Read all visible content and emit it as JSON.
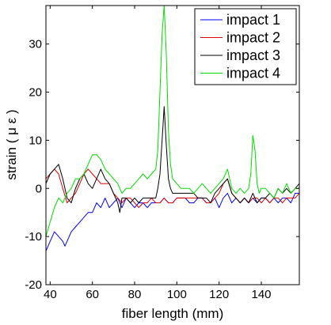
{
  "chart_data": {
    "type": "line",
    "xlabel": "fiber length (mm)",
    "ylabel": "strain ( μ ε )",
    "xlim": [
      38,
      158
    ],
    "ylim": [
      -20,
      38
    ],
    "xticks": [
      40,
      60,
      80,
      100,
      120,
      140
    ],
    "yticks": [
      -20,
      -10,
      0,
      10,
      20,
      30
    ],
    "grid": false,
    "legend_position": "top-right",
    "series": [
      {
        "name": "impact 1",
        "color": "#0000ff",
        "x": [
          38,
          40,
          42,
          44,
          46,
          47,
          48,
          50,
          52,
          54,
          56,
          58,
          60,
          62,
          64,
          66,
          68,
          70,
          72,
          74,
          76,
          78,
          80,
          82,
          84,
          86,
          88,
          90,
          92,
          94,
          96,
          98,
          100,
          102,
          104,
          106,
          108,
          110,
          112,
          114,
          116,
          118,
          120,
          122,
          124,
          126,
          128,
          130,
          132,
          134,
          136,
          138,
          140,
          142,
          144,
          146,
          148,
          150,
          152,
          154,
          156,
          158
        ],
        "y": [
          -13,
          -11,
          -9,
          -10,
          -11,
          -12,
          -11,
          -9,
          -8,
          -7,
          -6,
          -5,
          -5,
          -3,
          -4,
          -2,
          -4,
          -3,
          -2,
          -4,
          -2,
          -3,
          -4,
          -3,
          -3,
          -4,
          -3,
          -3,
          -3,
          -2,
          -3,
          -3,
          -2,
          -2,
          -2,
          -3,
          -3,
          -2,
          -2,
          -3,
          -3,
          -2,
          -4,
          -2,
          -1,
          -3,
          -2,
          -3,
          -2,
          -3,
          -2,
          -3,
          -2,
          -2,
          -3,
          -2,
          -3,
          -2,
          -2,
          -3,
          -1,
          -1
        ]
      },
      {
        "name": "impact 2",
        "color": "#e00000",
        "x": [
          38,
          40,
          42,
          44,
          46,
          48,
          50,
          52,
          54,
          56,
          58,
          60,
          62,
          64,
          66,
          68,
          70,
          72,
          74,
          76,
          78,
          80,
          82,
          84,
          86,
          88,
          90,
          92,
          94,
          96,
          98,
          100,
          102,
          104,
          106,
          108,
          110,
          112,
          114,
          116,
          118,
          120,
          122,
          124,
          126,
          128,
          130,
          132,
          134,
          136,
          138,
          140,
          142,
          144,
          146,
          148,
          150,
          152,
          154,
          156,
          158
        ],
        "y": [
          2,
          3,
          4,
          3,
          0,
          -3,
          -2,
          -1,
          1,
          3,
          4,
          3,
          2,
          1,
          1,
          1,
          -1,
          -2,
          -3,
          -2,
          -2,
          -3,
          -4,
          -3,
          -3,
          -2,
          -3,
          -3,
          -2,
          -3,
          -3,
          -2,
          -2,
          -2,
          -2,
          -2,
          -2,
          -2,
          -3,
          -3,
          -2,
          -1,
          1,
          2,
          -1,
          -2,
          -3,
          -2,
          -3,
          -2,
          -2,
          -3,
          -2,
          -3,
          -2,
          -2,
          -3,
          -2,
          -2,
          -2,
          -1
        ]
      },
      {
        "name": "impact 3",
        "color": "#000000",
        "x": [
          38,
          40,
          42,
          44,
          46,
          48,
          50,
          52,
          54,
          56,
          58,
          60,
          62,
          64,
          66,
          68,
          70,
          72,
          73,
          74,
          76,
          78,
          80,
          82,
          84,
          86,
          88,
          90,
          91,
          92,
          93,
          94,
          95,
          96,
          97,
          98,
          100,
          102,
          104,
          106,
          108,
          110,
          112,
          114,
          116,
          118,
          120,
          122,
          124,
          126,
          128,
          130,
          132,
          134,
          136,
          138,
          140,
          142,
          144,
          146,
          148,
          150,
          152,
          154,
          156,
          158
        ],
        "y": [
          1,
          3,
          4,
          5,
          2,
          -2,
          -3,
          0,
          2,
          3,
          1,
          0,
          2,
          4,
          2,
          1,
          -1,
          -3,
          -5,
          -2,
          -2,
          -3,
          -2,
          -3,
          -2,
          -2,
          -2,
          -2,
          0,
          3,
          10,
          17,
          9,
          2,
          0,
          -1,
          -1,
          -1,
          -1,
          -1,
          -1,
          -2,
          -2,
          -2,
          -3,
          -1,
          0,
          1,
          2,
          -1,
          -2,
          -3,
          -2,
          -3,
          -1,
          -3,
          -2,
          -2,
          -1,
          -2,
          0,
          -1,
          0,
          -1,
          0,
          1
        ]
      },
      {
        "name": "impact 4",
        "color": "#00dd00",
        "x": [
          38,
          40,
          42,
          44,
          46,
          48,
          50,
          52,
          54,
          56,
          58,
          60,
          62,
          64,
          66,
          68,
          70,
          72,
          74,
          76,
          78,
          80,
          82,
          84,
          86,
          88,
          90,
          91,
          92,
          93,
          94,
          95,
          96,
          97,
          98,
          100,
          102,
          104,
          106,
          108,
          110,
          112,
          114,
          116,
          118,
          120,
          122,
          124,
          126,
          128,
          130,
          132,
          134,
          135,
          136,
          137,
          138,
          139,
          140,
          142,
          144,
          146,
          148,
          150,
          152,
          154,
          156,
          158
        ],
        "y": [
          -10,
          -7,
          -4,
          -2,
          -3,
          -1,
          0,
          2,
          2,
          3,
          5,
          7,
          7,
          6,
          4,
          3,
          2,
          1,
          -1,
          0,
          0,
          1,
          2,
          3,
          2,
          3,
          4,
          8,
          20,
          32,
          38,
          28,
          12,
          5,
          2,
          1,
          0,
          0,
          0,
          -1,
          0,
          1,
          0,
          -1,
          0,
          1,
          2,
          4,
          0,
          -1,
          0,
          -1,
          0,
          3,
          11,
          8,
          1,
          -1,
          0,
          0,
          -1,
          -2,
          0,
          -1,
          1,
          -1,
          0,
          0
        ]
      }
    ]
  }
}
